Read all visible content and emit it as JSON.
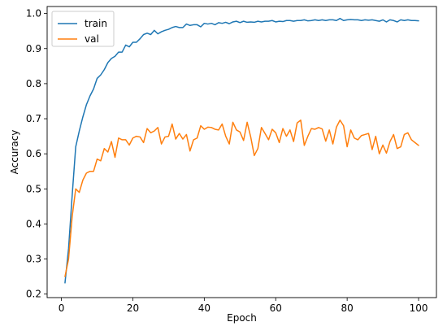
{
  "chart_data": {
    "type": "line",
    "title": "",
    "xlabel": "Epoch",
    "ylabel": "Accuracy",
    "xlim": [
      -4,
      105
    ],
    "ylim": [
      0.19,
      1.02
    ],
    "xticks": [
      0,
      20,
      40,
      60,
      80,
      100
    ],
    "yticks": [
      0.2,
      0.3,
      0.4,
      0.5,
      0.6,
      0.7,
      0.8,
      0.9,
      1.0
    ],
    "ytick_labels": [
      "0.2",
      "0.3",
      "0.4",
      "0.5",
      "0.6",
      "0.7",
      "0.8",
      "0.9",
      "1.0"
    ],
    "xtick_labels": [
      "0",
      "20",
      "40",
      "60",
      "80",
      "100"
    ],
    "grid": false,
    "legend_position": "top-left",
    "x": [
      1,
      2,
      3,
      4,
      5,
      6,
      7,
      8,
      9,
      10,
      11,
      12,
      13,
      14,
      15,
      16,
      17,
      18,
      19,
      20,
      21,
      22,
      23,
      24,
      25,
      26,
      27,
      28,
      29,
      30,
      31,
      32,
      33,
      34,
      35,
      36,
      37,
      38,
      39,
      40,
      41,
      42,
      43,
      44,
      45,
      46,
      47,
      48,
      49,
      50,
      51,
      52,
      53,
      54,
      55,
      56,
      57,
      58,
      59,
      60,
      61,
      62,
      63,
      64,
      65,
      66,
      67,
      68,
      69,
      70,
      71,
      72,
      73,
      74,
      75,
      76,
      77,
      78,
      79,
      80,
      81,
      82,
      83,
      84,
      85,
      86,
      87,
      88,
      89,
      90,
      91,
      92,
      93,
      94,
      95,
      96,
      97,
      98,
      99,
      100
    ],
    "series": [
      {
        "name": "train",
        "color": "#1f77b4",
        "values": [
          0.232,
          0.33,
          0.48,
          0.62,
          0.665,
          0.705,
          0.74,
          0.765,
          0.785,
          0.815,
          0.825,
          0.84,
          0.86,
          0.872,
          0.878,
          0.89,
          0.89,
          0.91,
          0.905,
          0.918,
          0.918,
          0.928,
          0.94,
          0.944,
          0.94,
          0.952,
          0.942,
          0.948,
          0.952,
          0.955,
          0.96,
          0.963,
          0.96,
          0.96,
          0.97,
          0.966,
          0.968,
          0.968,
          0.962,
          0.972,
          0.97,
          0.972,
          0.968,
          0.974,
          0.972,
          0.975,
          0.971,
          0.976,
          0.978,
          0.974,
          0.978,
          0.975,
          0.976,
          0.975,
          0.978,
          0.976,
          0.978,
          0.978,
          0.98,
          0.976,
          0.978,
          0.977,
          0.98,
          0.98,
          0.978,
          0.98,
          0.98,
          0.982,
          0.979,
          0.98,
          0.982,
          0.98,
          0.982,
          0.98,
          0.982,
          0.982,
          0.98,
          0.986,
          0.98,
          0.982,
          0.983,
          0.982,
          0.982,
          0.98,
          0.982,
          0.981,
          0.982,
          0.98,
          0.978,
          0.982,
          0.976,
          0.982,
          0.98,
          0.976,
          0.982,
          0.98,
          0.982,
          0.98,
          0.98,
          0.979
        ]
      },
      {
        "name": "val",
        "color": "#ff7f0e",
        "values": [
          0.25,
          0.3,
          0.42,
          0.5,
          0.49,
          0.525,
          0.545,
          0.55,
          0.55,
          0.585,
          0.58,
          0.615,
          0.605,
          0.635,
          0.59,
          0.645,
          0.64,
          0.64,
          0.625,
          0.645,
          0.65,
          0.648,
          0.632,
          0.672,
          0.66,
          0.665,
          0.675,
          0.628,
          0.648,
          0.65,
          0.685,
          0.642,
          0.658,
          0.642,
          0.655,
          0.608,
          0.64,
          0.645,
          0.68,
          0.67,
          0.676,
          0.675,
          0.67,
          0.668,
          0.685,
          0.65,
          0.628,
          0.69,
          0.668,
          0.662,
          0.638,
          0.69,
          0.648,
          0.595,
          0.615,
          0.675,
          0.658,
          0.64,
          0.67,
          0.66,
          0.632,
          0.672,
          0.65,
          0.668,
          0.635,
          0.688,
          0.696,
          0.624,
          0.65,
          0.672,
          0.67,
          0.675,
          0.671,
          0.636,
          0.668,
          0.628,
          0.676,
          0.696,
          0.68,
          0.62,
          0.668,
          0.645,
          0.64,
          0.652,
          0.655,
          0.658,
          0.612,
          0.65,
          0.6,
          0.625,
          0.602,
          0.635,
          0.655,
          0.615,
          0.62,
          0.655,
          0.66,
          0.64,
          0.632,
          0.624
        ]
      }
    ]
  }
}
